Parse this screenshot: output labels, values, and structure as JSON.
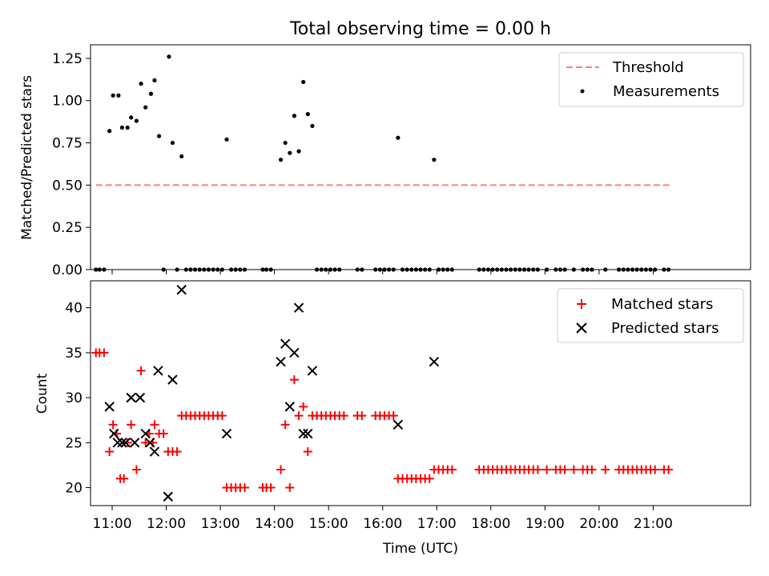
{
  "title": "Total observing time = 0.00 h",
  "colors": {
    "threshold": "#ff7f7f",
    "measurement": "#000000",
    "matched": "#ff0000",
    "predicted": "#000000",
    "axes": "#000000"
  },
  "chart_data": [
    {
      "type": "line",
      "panel": "top",
      "ylabel": "Matched/Predicted stars",
      "xlabel": "",
      "ylim": [
        0,
        1.33
      ],
      "xlim": [
        "10:36",
        "22:48"
      ],
      "x_ticks": [
        "11:00",
        "12:00",
        "13:00",
        "14:00",
        "15:00",
        "16:00",
        "17:00",
        "18:00",
        "19:00",
        "20:00",
        "21:00"
      ],
      "y_ticks": [
        "0.00",
        "0.25",
        "0.50",
        "0.75",
        "1.00",
        "1.25"
      ],
      "legend": {
        "position": "top-right",
        "entries": [
          "Threshold",
          "Measurements"
        ]
      },
      "threshold": {
        "name": "Threshold",
        "x": [
          "10:42",
          "21:18"
        ],
        "y": [
          0.5,
          0.5
        ],
        "style": "dashed"
      },
      "series": [
        {
          "name": "Measurements",
          "marker": "dot",
          "points": [
            [
              "10:42",
              0
            ],
            [
              "10:46",
              0
            ],
            [
              "10:51",
              0
            ],
            [
              "10:57",
              0.82
            ],
            [
              "11:01",
              1.03
            ],
            [
              "11:07",
              1.03
            ],
            [
              "11:11",
              0.84
            ],
            [
              "11:17",
              0.84
            ],
            [
              "11:21",
              0.9
            ],
            [
              "11:27",
              0.88
            ],
            [
              "11:32",
              1.1
            ],
            [
              "11:37",
              0.96
            ],
            [
              "11:43",
              1.04
            ],
            [
              "11:47",
              1.12
            ],
            [
              "11:52",
              0.79
            ],
            [
              "11:57",
              0
            ],
            [
              "12:03",
              1.26
            ],
            [
              "12:07",
              0.75
            ],
            [
              "12:12",
              0
            ],
            [
              "12:17",
              0.67
            ],
            [
              "12:22",
              0
            ],
            [
              "12:27",
              0
            ],
            [
              "12:32",
              0
            ],
            [
              "12:37",
              0
            ],
            [
              "12:42",
              0
            ],
            [
              "12:47",
              0
            ],
            [
              "12:52",
              0
            ],
            [
              "12:57",
              0
            ],
            [
              "13:02",
              0
            ],
            [
              "13:07",
              0.77
            ],
            [
              "13:12",
              0
            ],
            [
              "13:17",
              0
            ],
            [
              "13:22",
              0
            ],
            [
              "13:27",
              0
            ],
            [
              "13:47",
              0
            ],
            [
              "13:51",
              0
            ],
            [
              "13:56",
              0
            ],
            [
              "14:07",
              0.65
            ],
            [
              "14:12",
              0.75
            ],
            [
              "14:17",
              0.69
            ],
            [
              "14:22",
              0.91
            ],
            [
              "14:27",
              0.7
            ],
            [
              "14:32",
              1.11
            ],
            [
              "14:37",
              0.92
            ],
            [
              "14:42",
              0.85
            ],
            [
              "14:47",
              0
            ],
            [
              "14:52",
              0
            ],
            [
              "14:57",
              0
            ],
            [
              "15:02",
              0
            ],
            [
              "15:07",
              0
            ],
            [
              "15:12",
              0
            ],
            [
              "15:32",
              0
            ],
            [
              "15:37",
              0
            ],
            [
              "15:52",
              0
            ],
            [
              "15:57",
              0
            ],
            [
              "16:02",
              0
            ],
            [
              "16:07",
              0
            ],
            [
              "16:12",
              0
            ],
            [
              "16:17",
              0.78
            ],
            [
              "16:22",
              0
            ],
            [
              "16:27",
              0
            ],
            [
              "16:32",
              0
            ],
            [
              "16:37",
              0
            ],
            [
              "16:42",
              0
            ],
            [
              "16:47",
              0
            ],
            [
              "16:52",
              0
            ],
            [
              "16:57",
              0.65
            ],
            [
              "17:02",
              0
            ],
            [
              "17:07",
              0
            ],
            [
              "17:12",
              0
            ],
            [
              "17:17",
              0
            ],
            [
              "17:47",
              0
            ],
            [
              "17:52",
              0
            ],
            [
              "17:57",
              0
            ],
            [
              "18:02",
              0
            ],
            [
              "18:07",
              0
            ],
            [
              "18:12",
              0
            ],
            [
              "18:17",
              0
            ],
            [
              "18:22",
              0
            ],
            [
              "18:27",
              0
            ],
            [
              "18:32",
              0
            ],
            [
              "18:37",
              0
            ],
            [
              "18:42",
              0
            ],
            [
              "18:47",
              0
            ],
            [
              "18:52",
              0
            ],
            [
              "19:02",
              0
            ],
            [
              "19:12",
              0
            ],
            [
              "19:17",
              0
            ],
            [
              "19:22",
              0
            ],
            [
              "19:32",
              0
            ],
            [
              "19:42",
              0
            ],
            [
              "19:47",
              0
            ],
            [
              "19:52",
              0
            ],
            [
              "20:07",
              0
            ],
            [
              "20:22",
              0
            ],
            [
              "20:27",
              0
            ],
            [
              "20:32",
              0
            ],
            [
              "20:37",
              0
            ],
            [
              "20:42",
              0
            ],
            [
              "20:47",
              0
            ],
            [
              "20:52",
              0
            ],
            [
              "20:57",
              0
            ],
            [
              "21:02",
              0
            ],
            [
              "21:12",
              0
            ],
            [
              "21:17",
              0
            ]
          ]
        }
      ]
    },
    {
      "type": "scatter",
      "panel": "bottom",
      "ylabel": "Count",
      "xlabel": "Time (UTC)",
      "ylim": [
        18,
        43
      ],
      "xlim": [
        "10:36",
        "22:48"
      ],
      "x_ticks": [
        "11:00",
        "12:00",
        "13:00",
        "14:00",
        "15:00",
        "16:00",
        "17:00",
        "18:00",
        "19:00",
        "20:00",
        "21:00"
      ],
      "y_ticks": [
        "20",
        "25",
        "30",
        "35",
        "40"
      ],
      "legend": {
        "position": "top-right",
        "entries": [
          "Matched stars",
          "Predicted stars"
        ]
      },
      "series": [
        {
          "name": "Matched stars",
          "marker": "plus",
          "points": [
            [
              "10:42",
              35
            ],
            [
              "10:46",
              35
            ],
            [
              "10:51",
              35
            ],
            [
              "10:57",
              24
            ],
            [
              "11:01",
              27
            ],
            [
              "11:05",
              26
            ],
            [
              "11:09",
              21
            ],
            [
              "11:13",
              21
            ],
            [
              "11:17",
              25
            ],
            [
              "11:21",
              27
            ],
            [
              "11:27",
              22
            ],
            [
              "11:32",
              33
            ],
            [
              "11:37",
              25
            ],
            [
              "11:41",
              26
            ],
            [
              "11:45",
              25
            ],
            [
              "11:47",
              27
            ],
            [
              "11:52",
              26
            ],
            [
              "11:57",
              26
            ],
            [
              "12:02",
              24
            ],
            [
              "12:07",
              24
            ],
            [
              "12:12",
              24
            ],
            [
              "12:17",
              28
            ],
            [
              "12:22",
              28
            ],
            [
              "12:27",
              28
            ],
            [
              "12:32",
              28
            ],
            [
              "12:37",
              28
            ],
            [
              "12:42",
              28
            ],
            [
              "12:47",
              28
            ],
            [
              "12:52",
              28
            ],
            [
              "12:57",
              28
            ],
            [
              "13:02",
              28
            ],
            [
              "13:07",
              20
            ],
            [
              "13:12",
              20
            ],
            [
              "13:17",
              20
            ],
            [
              "13:22",
              20
            ],
            [
              "13:27",
              20
            ],
            [
              "13:47",
              20
            ],
            [
              "13:51",
              20
            ],
            [
              "13:56",
              20
            ],
            [
              "14:07",
              22
            ],
            [
              "14:12",
              27
            ],
            [
              "14:17",
              20
            ],
            [
              "14:22",
              32
            ],
            [
              "14:27",
              28
            ],
            [
              "14:32",
              29
            ],
            [
              "14:37",
              24
            ],
            [
              "14:42",
              28
            ],
            [
              "14:47",
              28
            ],
            [
              "14:52",
              28
            ],
            [
              "14:57",
              28
            ],
            [
              "15:02",
              28
            ],
            [
              "15:07",
              28
            ],
            [
              "15:12",
              28
            ],
            [
              "15:17",
              28
            ],
            [
              "15:32",
              28
            ],
            [
              "15:37",
              28
            ],
            [
              "15:52",
              28
            ],
            [
              "15:57",
              28
            ],
            [
              "16:02",
              28
            ],
            [
              "16:07",
              28
            ],
            [
              "16:12",
              28
            ],
            [
              "16:17",
              21
            ],
            [
              "16:22",
              21
            ],
            [
              "16:27",
              21
            ],
            [
              "16:32",
              21
            ],
            [
              "16:37",
              21
            ],
            [
              "16:42",
              21
            ],
            [
              "16:47",
              21
            ],
            [
              "16:52",
              21
            ],
            [
              "16:57",
              22
            ],
            [
              "17:02",
              22
            ],
            [
              "17:07",
              22
            ],
            [
              "17:12",
              22
            ],
            [
              "17:17",
              22
            ],
            [
              "17:47",
              22
            ],
            [
              "17:52",
              22
            ],
            [
              "17:57",
              22
            ],
            [
              "18:02",
              22
            ],
            [
              "18:07",
              22
            ],
            [
              "18:12",
              22
            ],
            [
              "18:17",
              22
            ],
            [
              "18:22",
              22
            ],
            [
              "18:27",
              22
            ],
            [
              "18:32",
              22
            ],
            [
              "18:37",
              22
            ],
            [
              "18:42",
              22
            ],
            [
              "18:47",
              22
            ],
            [
              "18:52",
              22
            ],
            [
              "19:02",
              22
            ],
            [
              "19:12",
              22
            ],
            [
              "19:17",
              22
            ],
            [
              "19:22",
              22
            ],
            [
              "19:32",
              22
            ],
            [
              "19:42",
              22
            ],
            [
              "19:47",
              22
            ],
            [
              "19:52",
              22
            ],
            [
              "20:07",
              22
            ],
            [
              "20:22",
              22
            ],
            [
              "20:27",
              22
            ],
            [
              "20:32",
              22
            ],
            [
              "20:37",
              22
            ],
            [
              "20:42",
              22
            ],
            [
              "20:47",
              22
            ],
            [
              "20:52",
              22
            ],
            [
              "20:57",
              22
            ],
            [
              "21:02",
              22
            ],
            [
              "21:12",
              22
            ],
            [
              "21:17",
              22
            ]
          ]
        },
        {
          "name": "Predicted stars",
          "marker": "x",
          "points": [
            [
              "10:57",
              29
            ],
            [
              "11:02",
              26
            ],
            [
              "11:06",
              25
            ],
            [
              "11:11",
              25
            ],
            [
              "11:15",
              25
            ],
            [
              "11:21",
              30
            ],
            [
              "11:25",
              25
            ],
            [
              "11:31",
              30
            ],
            [
              "11:37",
              26
            ],
            [
              "11:42",
              25
            ],
            [
              "11:47",
              24
            ],
            [
              "11:51",
              33
            ],
            [
              "12:02",
              19
            ],
            [
              "12:07",
              32
            ],
            [
              "12:17",
              42
            ],
            [
              "13:07",
              26
            ],
            [
              "14:07",
              34
            ],
            [
              "14:12",
              36
            ],
            [
              "14:17",
              29
            ],
            [
              "14:22",
              35
            ],
            [
              "14:27",
              40
            ],
            [
              "14:32",
              26
            ],
            [
              "14:37",
              26
            ],
            [
              "14:42",
              33
            ],
            [
              "16:17",
              27
            ],
            [
              "16:57",
              34
            ]
          ]
        }
      ]
    }
  ]
}
